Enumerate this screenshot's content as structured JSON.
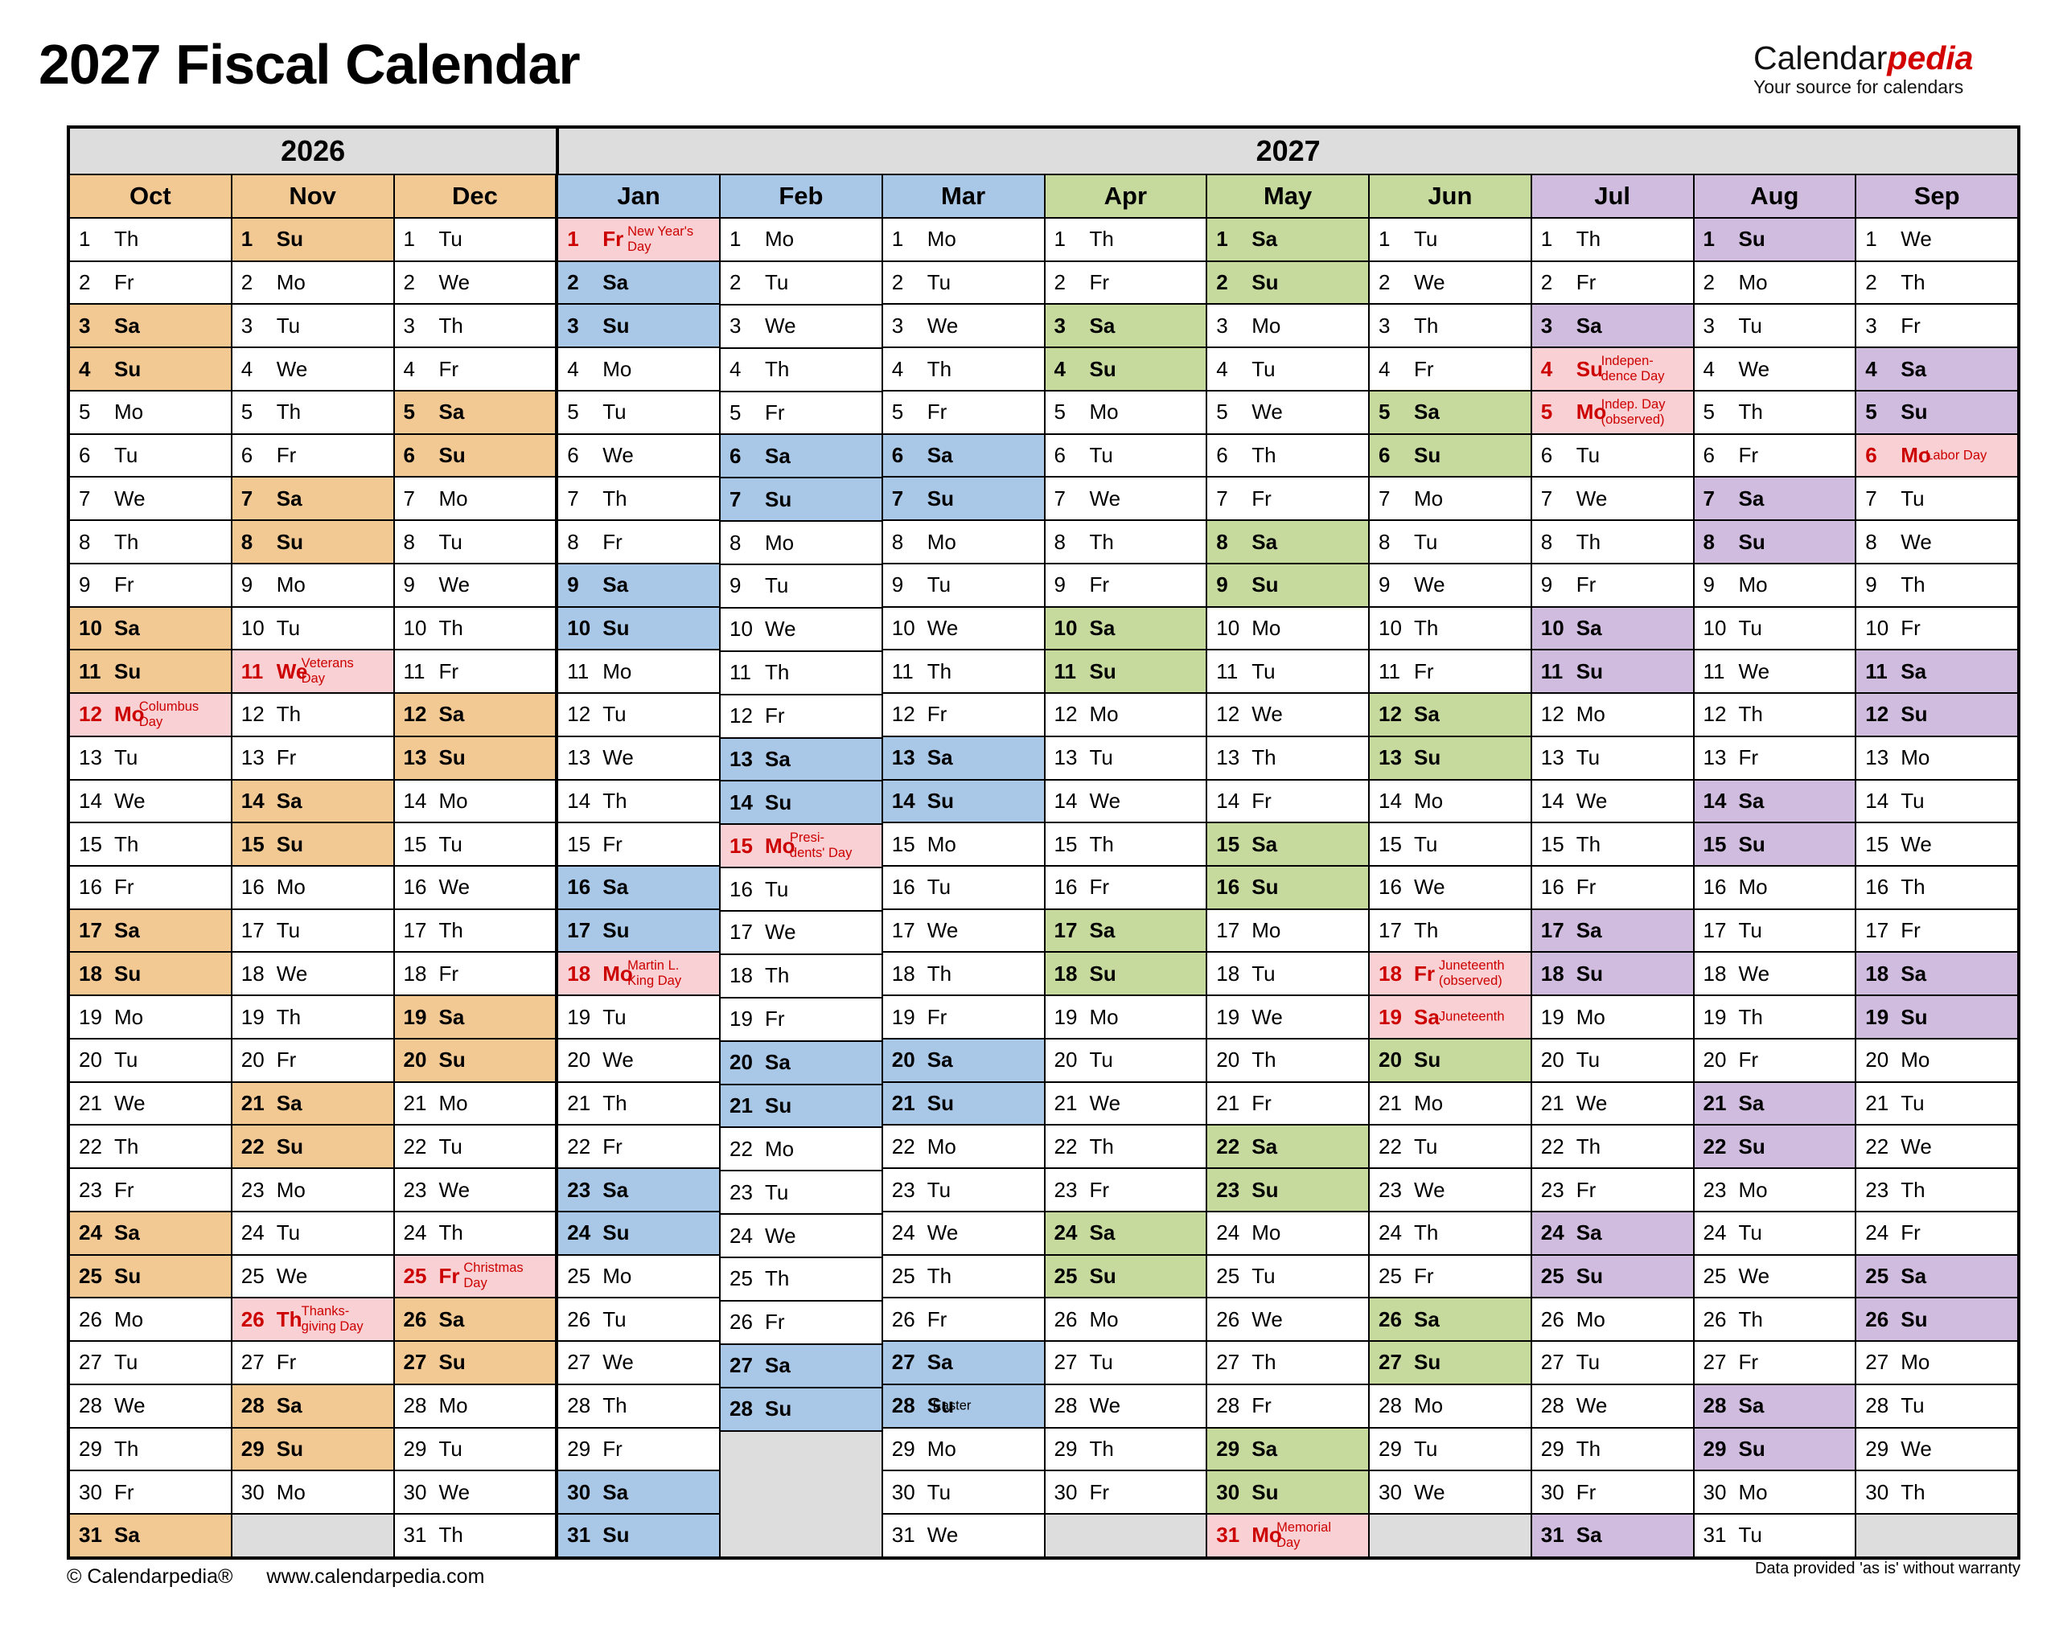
{
  "header": {
    "title": "2027 Fiscal Calendar"
  },
  "logo": {
    "brand_black": "Calendar",
    "brand_red": "pedia",
    "tagline": "Your source for calendars"
  },
  "footer": {
    "copyright": "© Calendarpedia®",
    "url": "www.calendarpedia.com",
    "disclaimer": "Data provided 'as is' without warranty"
  },
  "colors": {
    "orange": "#F2C893",
    "blue": "#A9C7E7",
    "green": "#C7DA9E",
    "purple": "#D0BCDF",
    "pink": "#F9D1D4",
    "red": "#CC0000",
    "gray": "#DDDDDD"
  },
  "year_groups": [
    {
      "year": "2026",
      "span": 3
    },
    {
      "year": "2027",
      "span": 9
    }
  ],
  "months": [
    {
      "name": "Oct",
      "year": "2026",
      "color": "orange",
      "weekdays": [
        "Th",
        "Fr",
        "Sa",
        "Su",
        "Mo",
        "Tu",
        "We",
        "Th",
        "Fr",
        "Sa",
        "Su",
        "Mo",
        "Tu",
        "We",
        "Th",
        "Fr",
        "Sa",
        "Su",
        "Mo",
        "Tu",
        "We",
        "Th",
        "Fr",
        "Sa",
        "Su",
        "Mo",
        "Tu",
        "We",
        "Th",
        "Fr",
        "Sa"
      ]
    },
    {
      "name": "Nov",
      "year": "2026",
      "color": "orange",
      "weekdays": [
        "Su",
        "Mo",
        "Tu",
        "We",
        "Th",
        "Fr",
        "Sa",
        "Su",
        "Mo",
        "Tu",
        "We",
        "Th",
        "Fr",
        "Sa",
        "Su",
        "Mo",
        "Tu",
        "We",
        "Th",
        "Fr",
        "Sa",
        "Su",
        "Mo",
        "Tu",
        "We",
        "Th",
        "Fr",
        "Sa",
        "Su",
        "Mo"
      ]
    },
    {
      "name": "Dec",
      "year": "2026",
      "color": "orange",
      "weekdays": [
        "Tu",
        "We",
        "Th",
        "Fr",
        "Sa",
        "Su",
        "Mo",
        "Tu",
        "We",
        "Th",
        "Fr",
        "Sa",
        "Su",
        "Mo",
        "Tu",
        "We",
        "Th",
        "Fr",
        "Sa",
        "Su",
        "Mo",
        "Tu",
        "We",
        "Th",
        "Fr",
        "Sa",
        "Su",
        "Mo",
        "Tu",
        "We",
        "Th"
      ]
    },
    {
      "name": "Jan",
      "year": "2027",
      "color": "blue",
      "weekdays": [
        "Fr",
        "Sa",
        "Su",
        "Mo",
        "Tu",
        "We",
        "Th",
        "Fr",
        "Sa",
        "Su",
        "Mo",
        "Tu",
        "We",
        "Th",
        "Fr",
        "Sa",
        "Su",
        "Mo",
        "Tu",
        "We",
        "Th",
        "Fr",
        "Sa",
        "Su",
        "Mo",
        "Tu",
        "We",
        "Th",
        "Fr",
        "Sa",
        "Su"
      ]
    },
    {
      "name": "Feb",
      "year": "2027",
      "color": "blue",
      "weekdays": [
        "Mo",
        "Tu",
        "We",
        "Th",
        "Fr",
        "Sa",
        "Su",
        "Mo",
        "Tu",
        "We",
        "Th",
        "Fr",
        "Sa",
        "Su",
        "Mo",
        "Tu",
        "We",
        "Th",
        "Fr",
        "Sa",
        "Su",
        "Mo",
        "Tu",
        "We",
        "Th",
        "Fr",
        "Sa",
        "Su"
      ]
    },
    {
      "name": "Mar",
      "year": "2027",
      "color": "blue",
      "weekdays": [
        "Mo",
        "Tu",
        "We",
        "Th",
        "Fr",
        "Sa",
        "Su",
        "Mo",
        "Tu",
        "We",
        "Th",
        "Fr",
        "Sa",
        "Su",
        "Mo",
        "Tu",
        "We",
        "Th",
        "Fr",
        "Sa",
        "Su",
        "Mo",
        "Tu",
        "We",
        "Th",
        "Fr",
        "Sa",
        "Su",
        "Mo",
        "Tu",
        "We"
      ]
    },
    {
      "name": "Apr",
      "year": "2027",
      "color": "green",
      "weekdays": [
        "Th",
        "Fr",
        "Sa",
        "Su",
        "Mo",
        "Tu",
        "We",
        "Th",
        "Fr",
        "Sa",
        "Su",
        "Mo",
        "Tu",
        "We",
        "Th",
        "Fr",
        "Sa",
        "Su",
        "Mo",
        "Tu",
        "We",
        "Th",
        "Fr",
        "Sa",
        "Su",
        "Mo",
        "Tu",
        "We",
        "Th",
        "Fr"
      ]
    },
    {
      "name": "May",
      "year": "2027",
      "color": "green",
      "weekdays": [
        "Sa",
        "Su",
        "Mo",
        "Tu",
        "We",
        "Th",
        "Fr",
        "Sa",
        "Su",
        "Mo",
        "Tu",
        "We",
        "Th",
        "Fr",
        "Sa",
        "Su",
        "Mo",
        "Tu",
        "We",
        "Th",
        "Fr",
        "Sa",
        "Su",
        "Mo",
        "Tu",
        "We",
        "Th",
        "Fr",
        "Sa",
        "Su",
        "Mo"
      ]
    },
    {
      "name": "Jun",
      "year": "2027",
      "color": "green",
      "weekdays": [
        "Tu",
        "We",
        "Th",
        "Fr",
        "Sa",
        "Su",
        "Mo",
        "Tu",
        "We",
        "Th",
        "Fr",
        "Sa",
        "Su",
        "Mo",
        "Tu",
        "We",
        "Th",
        "Fr",
        "Sa",
        "Su",
        "Mo",
        "Tu",
        "We",
        "Th",
        "Fr",
        "Sa",
        "Su",
        "Mo",
        "Tu",
        "We"
      ]
    },
    {
      "name": "Jul",
      "year": "2027",
      "color": "purple",
      "weekdays": [
        "Th",
        "Fr",
        "Sa",
        "Su",
        "Mo",
        "Tu",
        "We",
        "Th",
        "Fr",
        "Sa",
        "Su",
        "Mo",
        "Tu",
        "We",
        "Th",
        "Fr",
        "Sa",
        "Su",
        "Mo",
        "Tu",
        "We",
        "Th",
        "Fr",
        "Sa",
        "Su",
        "Mo",
        "Tu",
        "We",
        "Th",
        "Fr",
        "Sa"
      ]
    },
    {
      "name": "Aug",
      "year": "2027",
      "color": "purple",
      "weekdays": [
        "Su",
        "Mo",
        "Tu",
        "We",
        "Th",
        "Fr",
        "Sa",
        "Su",
        "Mo",
        "Tu",
        "We",
        "Th",
        "Fr",
        "Sa",
        "Su",
        "Mo",
        "Tu",
        "We",
        "Th",
        "Fr",
        "Sa",
        "Su",
        "Mo",
        "Tu",
        "We",
        "Th",
        "Fr",
        "Sa",
        "Su",
        "Mo",
        "Tu"
      ]
    },
    {
      "name": "Sep",
      "year": "2027",
      "color": "purple",
      "weekdays": [
        "We",
        "Th",
        "Fr",
        "Sa",
        "Su",
        "Mo",
        "Tu",
        "We",
        "Th",
        "Fr",
        "Sa",
        "Su",
        "Mo",
        "Tu",
        "We",
        "Th",
        "Fr",
        "Sa",
        "Su",
        "Mo",
        "Tu",
        "We",
        "Th",
        "Fr",
        "Sa",
        "Su",
        "Mo",
        "Tu",
        "We",
        "Th"
      ]
    }
  ],
  "holidays": [
    {
      "month": "Oct",
      "day": 12,
      "label": "Columbus\nDay",
      "style": "red"
    },
    {
      "month": "Nov",
      "day": 11,
      "label": "Veterans\nDay",
      "style": "red"
    },
    {
      "month": "Nov",
      "day": 26,
      "label": "Thanks-\ngiving Day",
      "style": "red"
    },
    {
      "month": "Dec",
      "day": 25,
      "label": "Christmas\nDay",
      "style": "red"
    },
    {
      "month": "Jan",
      "day": 1,
      "label": "New Year's\nDay",
      "style": "red"
    },
    {
      "month": "Jan",
      "day": 18,
      "label": "Martin L.\nKing Day",
      "style": "red"
    },
    {
      "month": "Feb",
      "day": 15,
      "label": "Presi-\ndents' Day",
      "style": "red"
    },
    {
      "month": "Mar",
      "day": 28,
      "label": "Easter",
      "style": "black"
    },
    {
      "month": "May",
      "day": 31,
      "label": "Memorial\nDay",
      "style": "red"
    },
    {
      "month": "Jun",
      "day": 18,
      "label": "Juneteenth\n(observed)",
      "style": "red"
    },
    {
      "month": "Jun",
      "day": 19,
      "label": "Juneteenth",
      "style": "red"
    },
    {
      "month": "Jul",
      "day": 4,
      "label": "Indepen-\ndence Day",
      "style": "red"
    },
    {
      "month": "Jul",
      "day": 5,
      "label": "Indep. Day\n(observed)",
      "style": "red"
    },
    {
      "month": "Sep",
      "day": 6,
      "label": "Labor Day",
      "style": "red"
    }
  ]
}
